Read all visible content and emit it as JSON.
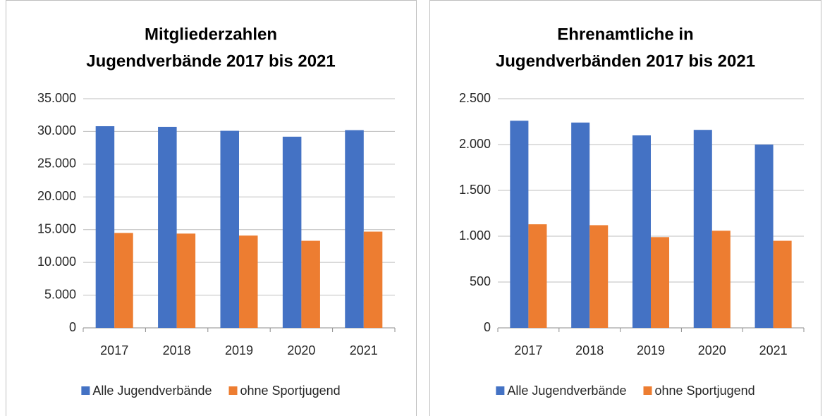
{
  "chart_data": [
    {
      "type": "bar",
      "title": [
        "Mitgliederzahlen",
        "Jugendverbände 2017 bis 2021"
      ],
      "categories": [
        "2017",
        "2018",
        "2019",
        "2020",
        "2021"
      ],
      "series": [
        {
          "name": "Alle Jugendverbände",
          "color": "#4472c4",
          "values": [
            30800,
            30700,
            30100,
            29200,
            30200
          ]
        },
        {
          "name": "ohne Sportjugend",
          "color": "#ed7d31",
          "values": [
            14500,
            14400,
            14100,
            13300,
            14700
          ]
        }
      ],
      "ylim": [
        0,
        35000
      ],
      "yticks": [
        0,
        {
          "value": 5000,
          "label": "5.000"
        },
        {
          "value": 10000,
          "label": "10.000"
        },
        {
          "value": 15000,
          "label": "15.000"
        },
        {
          "value": 20000,
          "label": "20.000"
        },
        {
          "value": 25000,
          "label": "25.000"
        },
        {
          "value": 30000,
          "label": "30.000"
        },
        {
          "value": 35000,
          "label": "35.000"
        }
      ],
      "grid": true,
      "legend": "bottom"
    },
    {
      "type": "bar",
      "title": [
        "Ehrenamtliche in",
        "Jugendverbänden 2017 bis 2021"
      ],
      "categories": [
        "2017",
        "2018",
        "2019",
        "2020",
        "2021"
      ],
      "series": [
        {
          "name": "Alle Jugendverbände",
          "color": "#4472c4",
          "values": [
            2260,
            2240,
            2100,
            2160,
            2000
          ]
        },
        {
          "name": "ohne Sportjugend",
          "color": "#ed7d31",
          "values": [
            1130,
            1120,
            990,
            1060,
            950
          ]
        }
      ],
      "ylim": [
        0,
        2500
      ],
      "yticks": [
        0,
        500,
        {
          "value": 1000,
          "label": "1.000"
        },
        {
          "value": 1500,
          "label": "1.500"
        },
        {
          "value": 2000,
          "label": "2.000"
        },
        {
          "value": 2500,
          "label": "2.500"
        }
      ],
      "grid": true,
      "legend": "bottom"
    }
  ]
}
